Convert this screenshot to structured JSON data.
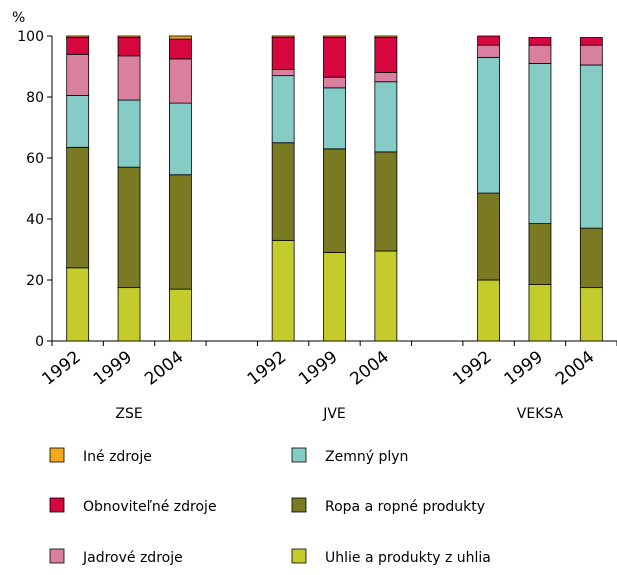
{
  "chart_data": {
    "type": "bar",
    "stacked": true,
    "ylabel": "%",
    "ylim": [
      0,
      100
    ],
    "yticks": [
      0,
      20,
      40,
      60,
      80,
      100
    ],
    "grid": false,
    "legend_position": "bottom",
    "groups": [
      {
        "name": "ZSE",
        "categories": [
          "1992",
          "1999",
          "2004"
        ]
      },
      {
        "name": "JVE",
        "categories": [
          "1992",
          "1999",
          "2004"
        ]
      },
      {
        "name": "VEKSA",
        "categories": [
          "1992",
          "1999",
          "2004"
        ]
      }
    ],
    "series": [
      {
        "name": "Uhlie a produkty z uhlia",
        "color": "#c4cc2c",
        "values": [
          24,
          17.5,
          17,
          33,
          29,
          29.5,
          20,
          18.5,
          17.5
        ]
      },
      {
        "name": "Ropa a ropné produkty",
        "color": "#7a7a22",
        "values": [
          39.5,
          39.5,
          37.5,
          32,
          34,
          32.5,
          28.5,
          20,
          19.5
        ]
      },
      {
        "name": "Zemný plyn",
        "color": "#85ccc6",
        "values": [
          17,
          22,
          23.5,
          22,
          20,
          23,
          44.5,
          52.5,
          53.5
        ]
      },
      {
        "name": "Jadrové zdroje",
        "color": "#d980a0",
        "values": [
          13.5,
          14.5,
          14.5,
          2,
          3.5,
          3,
          4,
          6,
          6.5
        ]
      },
      {
        "name": "Obnoviteľné zdroje",
        "color": "#d6063e",
        "values": [
          5.5,
          6,
          6.5,
          10.5,
          13,
          11.5,
          3,
          2.5,
          2.5
        ]
      },
      {
        "name": "Iné zdroje",
        "color": "#f3a81d",
        "values": [
          0.5,
          0.5,
          1,
          0.5,
          0.5,
          0.5,
          0,
          0,
          0
        ]
      }
    ],
    "legend_order": [
      "Iné zdroje",
      "Zemný plyn",
      "Obnoviteľné zdroje",
      "Ropa a ropné produkty",
      "Jadrové zdroje",
      "Uhlie a produkty z uhlia"
    ]
  }
}
